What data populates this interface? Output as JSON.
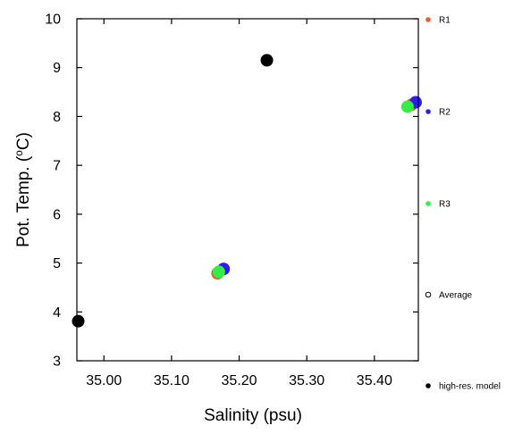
{
  "chart_data": {
    "type": "scatter",
    "title": "",
    "xlabel": "Salinity (psu)",
    "ylabel_main": "Pot. Temp. (",
    "ylabel_sup": "o",
    "ylabel_end": "C)",
    "xlim": [
      34.96,
      35.465
    ],
    "ylim": [
      3,
      10
    ],
    "xticks": [
      35.0,
      35.1,
      35.2,
      35.3,
      35.4
    ],
    "xtick_labels": [
      "35.00",
      "35.10",
      "35.20",
      "35.30",
      "35.40"
    ],
    "yticks": [
      3,
      4,
      5,
      6,
      7,
      8,
      9,
      10
    ],
    "ytick_labels": [
      "3",
      "4",
      "5",
      "6",
      "7",
      "8",
      "9",
      "10"
    ],
    "grid": false,
    "legend_position": "right",
    "series": [
      {
        "name": "R1",
        "color": "#f05a28",
        "marker": "filled-circle",
        "points": [
          {
            "x": 35.168,
            "y": 4.79
          },
          {
            "x": 35.455,
            "y": 8.24
          }
        ]
      },
      {
        "name": "R2",
        "color": "#2f1bf0",
        "marker": "filled-circle",
        "points": [
          {
            "x": 35.177,
            "y": 4.88
          },
          {
            "x": 35.461,
            "y": 8.29
          }
        ]
      },
      {
        "name": "R3",
        "color": "#33ee44",
        "marker": "filled-circle",
        "points": [
          {
            "x": 35.17,
            "y": 4.82
          },
          {
            "x": 35.449,
            "y": 8.2
          }
        ]
      },
      {
        "name": "Average",
        "color": "#000000",
        "marker": "open-circle",
        "points": []
      },
      {
        "name": "high-res. model",
        "color": "#000000",
        "marker": "filled-circle",
        "points": [
          {
            "x": 34.962,
            "y": 3.81
          },
          {
            "x": 35.241,
            "y": 9.15
          }
        ]
      }
    ]
  }
}
